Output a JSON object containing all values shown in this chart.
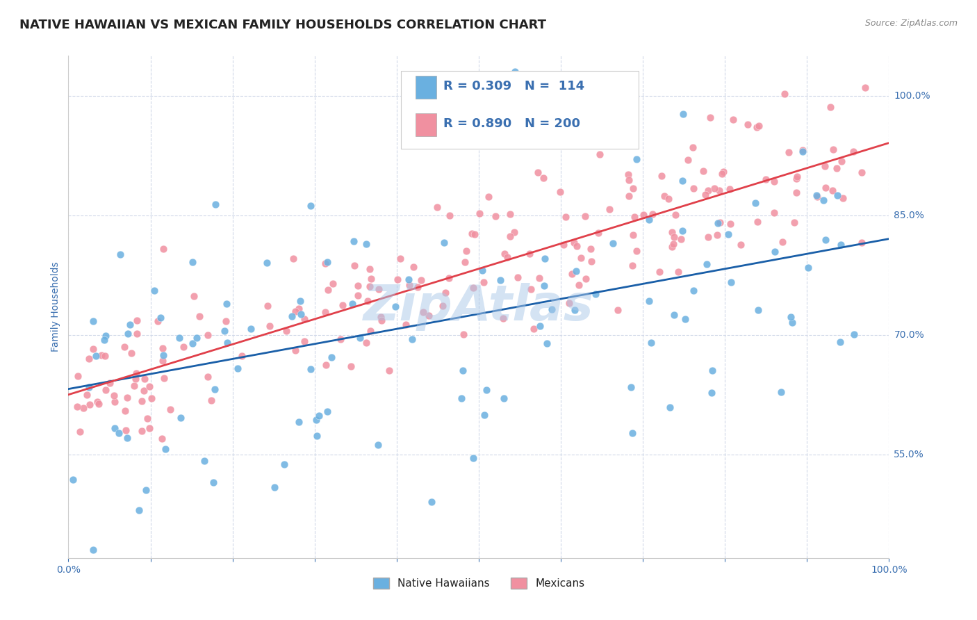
{
  "title": "NATIVE HAWAIIAN VS MEXICAN FAMILY HOUSEHOLDS CORRELATION CHART",
  "source": "Source: ZipAtlas.com",
  "xlabel": "",
  "ylabel": "Family Households",
  "xlim": [
    0.0,
    1.0
  ],
  "ylim": [
    0.42,
    1.05
  ],
  "yticks": [
    0.55,
    0.7,
    0.85,
    1.0
  ],
  "ytick_labels": [
    "55.0%",
    "70.0%",
    "85.0%",
    "100.0%"
  ],
  "xticks": [
    0.0,
    0.1,
    0.2,
    0.3,
    0.4,
    0.5,
    0.6,
    0.7,
    0.8,
    0.9,
    1.0
  ],
  "blue_R": 0.309,
  "blue_N": 114,
  "pink_R": 0.89,
  "pink_N": 200,
  "blue_line_color": "#1a5fa8",
  "pink_line_color": "#e0404a",
  "blue_scatter_color": "#6ab0e0",
  "pink_scatter_color": "#f090a0",
  "watermark": "ZipAtlas",
  "watermark_color": "#aac8e8",
  "background_color": "#ffffff",
  "grid_color": "#d0d8e8",
  "title_color": "#222222",
  "title_fontsize": 13,
  "label_color": "#3a6fb0",
  "legend_label_blue": "Native Hawaiians",
  "legend_label_pink": "Mexicans"
}
